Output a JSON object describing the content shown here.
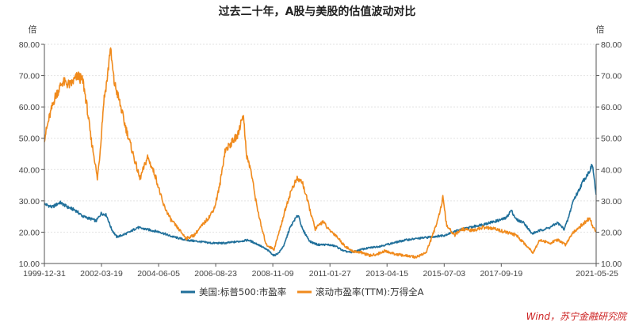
{
  "chart_data": {
    "type": "line",
    "title": "过去二十年，A股与美股的估值波动对比",
    "ylabel_left": "倍",
    "ylabel_right": "倍",
    "ylim": [
      10,
      80
    ],
    "yticks": [
      "10.00",
      "20.00",
      "30.00",
      "40.00",
      "50.00",
      "60.00",
      "70.00",
      "80.00"
    ],
    "xlim": [
      "1999-12-31",
      "2021-05-25"
    ],
    "xticks": [
      "1999-12-31",
      "2002-03-19",
      "2004-06-05",
      "2006-08-23",
      "2008-11-09",
      "2011-01-27",
      "2013-04-15",
      "2015-07-03",
      "2017-09-19",
      "2021-05-25"
    ],
    "grid": true,
    "legend_position": "bottom",
    "colors": {
      "us": "#1f6f9a",
      "cn": "#f08a1c"
    },
    "series": [
      {
        "name": "美国:标普500:市盈率",
        "color": "#1f6f9a",
        "points": [
          [
            "2000.00",
            29.0
          ],
          [
            "2000.30",
            28.0
          ],
          [
            "2000.60",
            29.5
          ],
          [
            "2000.90",
            28.0
          ],
          [
            "2001.20",
            27.0
          ],
          [
            "2001.50",
            25.0
          ],
          [
            "2001.90",
            24.0
          ],
          [
            "2002.00",
            23.5
          ],
          [
            "2002.20",
            26.0
          ],
          [
            "2002.40",
            25.5
          ],
          [
            "2002.60",
            21.0
          ],
          [
            "2002.80",
            18.5
          ],
          [
            "2003.00",
            19.0
          ],
          [
            "2003.30",
            20.0
          ],
          [
            "2003.60",
            21.5
          ],
          [
            "2003.90",
            21.0
          ],
          [
            "2004.20",
            20.5
          ],
          [
            "2004.50",
            20.0
          ],
          [
            "2004.80",
            19.0
          ],
          [
            "2005.00",
            18.5
          ],
          [
            "2005.50",
            17.5
          ],
          [
            "2006.00",
            17.0
          ],
          [
            "2006.50",
            16.5
          ],
          [
            "2007.00",
            16.5
          ],
          [
            "2007.50",
            17.0
          ],
          [
            "2007.90",
            17.5
          ],
          [
            "2008.30",
            16.0
          ],
          [
            "2008.70",
            14.0
          ],
          [
            "2008.90",
            12.5
          ],
          [
            "2009.10",
            13.5
          ],
          [
            "2009.30",
            16.0
          ],
          [
            "2009.50",
            21.0
          ],
          [
            "2009.70",
            24.0
          ],
          [
            "2009.85",
            25.5
          ],
          [
            "2010.00",
            21.0
          ],
          [
            "2010.30",
            17.0
          ],
          [
            "2010.60",
            16.0
          ],
          [
            "2011.00",
            16.0
          ],
          [
            "2011.30",
            15.5
          ],
          [
            "2011.60",
            14.0
          ],
          [
            "2011.90",
            13.5
          ],
          [
            "2012.30",
            14.5
          ],
          [
            "2012.60",
            15.0
          ],
          [
            "2013.00",
            15.5
          ],
          [
            "2013.50",
            16.5
          ],
          [
            "2014.00",
            17.5
          ],
          [
            "2014.50",
            18.0
          ],
          [
            "2015.00",
            18.5
          ],
          [
            "2015.50",
            19.0
          ],
          [
            "2016.00",
            20.5
          ],
          [
            "2016.50",
            21.5
          ],
          [
            "2017.00",
            22.5
          ],
          [
            "2017.50",
            23.5
          ],
          [
            "2017.90",
            24.5
          ],
          [
            "2018.10",
            27.0
          ],
          [
            "2018.30",
            24.0
          ],
          [
            "2018.60",
            23.0
          ],
          [
            "2018.90",
            19.5
          ],
          [
            "2019.20",
            20.5
          ],
          [
            "2019.60",
            21.5
          ],
          [
            "2019.90",
            23.0
          ],
          [
            "2020.15",
            21.0
          ],
          [
            "2020.30",
            24.0
          ],
          [
            "2020.50",
            30.0
          ],
          [
            "2020.70",
            33.0
          ],
          [
            "2020.90",
            36.5
          ],
          [
            "2021.10",
            39.0
          ],
          [
            "2021.25",
            41.5
          ],
          [
            "2021.32",
            37.0
          ],
          [
            "2021.39",
            32.0
          ]
        ]
      },
      {
        "name": "滚动市盈率(TTM):万得全A",
        "color": "#f08a1c",
        "points": [
          [
            "2000.00",
            50.0
          ],
          [
            "2000.20",
            57.0
          ],
          [
            "2000.40",
            63.0
          ],
          [
            "2000.70",
            68.0
          ],
          [
            "2001.00",
            67.0
          ],
          [
            "2001.30",
            70.0
          ],
          [
            "2001.50",
            68.0
          ],
          [
            "2001.65",
            60.0
          ],
          [
            "2001.80",
            50.0
          ],
          [
            "2001.95",
            43.0
          ],
          [
            "2002.05",
            37.0
          ],
          [
            "2002.15",
            45.0
          ],
          [
            "2002.30",
            62.0
          ],
          [
            "2002.45",
            70.0
          ],
          [
            "2002.55",
            79.0
          ],
          [
            "2002.70",
            68.0
          ],
          [
            "2002.90",
            62.0
          ],
          [
            "2003.10",
            55.0
          ],
          [
            "2003.40",
            46.0
          ],
          [
            "2003.70",
            37.0
          ],
          [
            "2004.00",
            44.0
          ],
          [
            "2004.30",
            38.0
          ],
          [
            "2004.60",
            29.0
          ],
          [
            "2004.90",
            24.0
          ],
          [
            "2005.20",
            21.0
          ],
          [
            "2005.50",
            18.0
          ],
          [
            "2005.80",
            19.0
          ],
          [
            "2006.10",
            22.0
          ],
          [
            "2006.40",
            25.0
          ],
          [
            "2006.60",
            28.0
          ],
          [
            "2006.80",
            35.0
          ],
          [
            "2007.00",
            46.0
          ],
          [
            "2007.20",
            48.0
          ],
          [
            "2007.50",
            51.0
          ],
          [
            "2007.70",
            58.0
          ],
          [
            "2007.85",
            44.0
          ],
          [
            "2008.00",
            40.0
          ],
          [
            "2008.20",
            30.0
          ],
          [
            "2008.40",
            22.0
          ],
          [
            "2008.60",
            16.0
          ],
          [
            "2008.90",
            14.5
          ],
          [
            "2009.10",
            20.0
          ],
          [
            "2009.40",
            29.0
          ],
          [
            "2009.60",
            34.0
          ],
          [
            "2009.80",
            37.0
          ],
          [
            "2010.00",
            36.0
          ],
          [
            "2010.20",
            30.0
          ],
          [
            "2010.50",
            21.0
          ],
          [
            "2010.80",
            23.5
          ],
          [
            "2011.00",
            21.0
          ],
          [
            "2011.30",
            19.0
          ],
          [
            "2011.60",
            16.0
          ],
          [
            "2011.90",
            14.0
          ],
          [
            "2012.30",
            13.5
          ],
          [
            "2012.60",
            12.5
          ],
          [
            "2012.90",
            13.0
          ],
          [
            "2013.20",
            14.0
          ],
          [
            "2013.60",
            13.0
          ],
          [
            "2014.00",
            12.5
          ],
          [
            "2014.40",
            12.0
          ],
          [
            "2014.80",
            13.5
          ],
          [
            "2015.10",
            20.0
          ],
          [
            "2015.35",
            27.0
          ],
          [
            "2015.45",
            31.0
          ],
          [
            "2015.60",
            22.0
          ],
          [
            "2015.90",
            19.0
          ],
          [
            "2016.20",
            21.0
          ],
          [
            "2016.60",
            20.5
          ],
          [
            "2017.00",
            21.5
          ],
          [
            "2017.50",
            21.0
          ],
          [
            "2017.90",
            20.0
          ],
          [
            "2018.30",
            19.0
          ],
          [
            "2018.60",
            16.5
          ],
          [
            "2018.95",
            13.5
          ],
          [
            "2019.20",
            17.5
          ],
          [
            "2019.60",
            16.5
          ],
          [
            "2019.90",
            17.5
          ],
          [
            "2020.20",
            16.0
          ],
          [
            "2020.50",
            20.0
          ],
          [
            "2020.80",
            22.0
          ],
          [
            "2021.00",
            23.5
          ],
          [
            "2021.15",
            24.5
          ],
          [
            "2021.25",
            22.0
          ],
          [
            "2021.39",
            20.0
          ]
        ]
      }
    ]
  },
  "watermark": "Wind，苏宁金融研究院"
}
